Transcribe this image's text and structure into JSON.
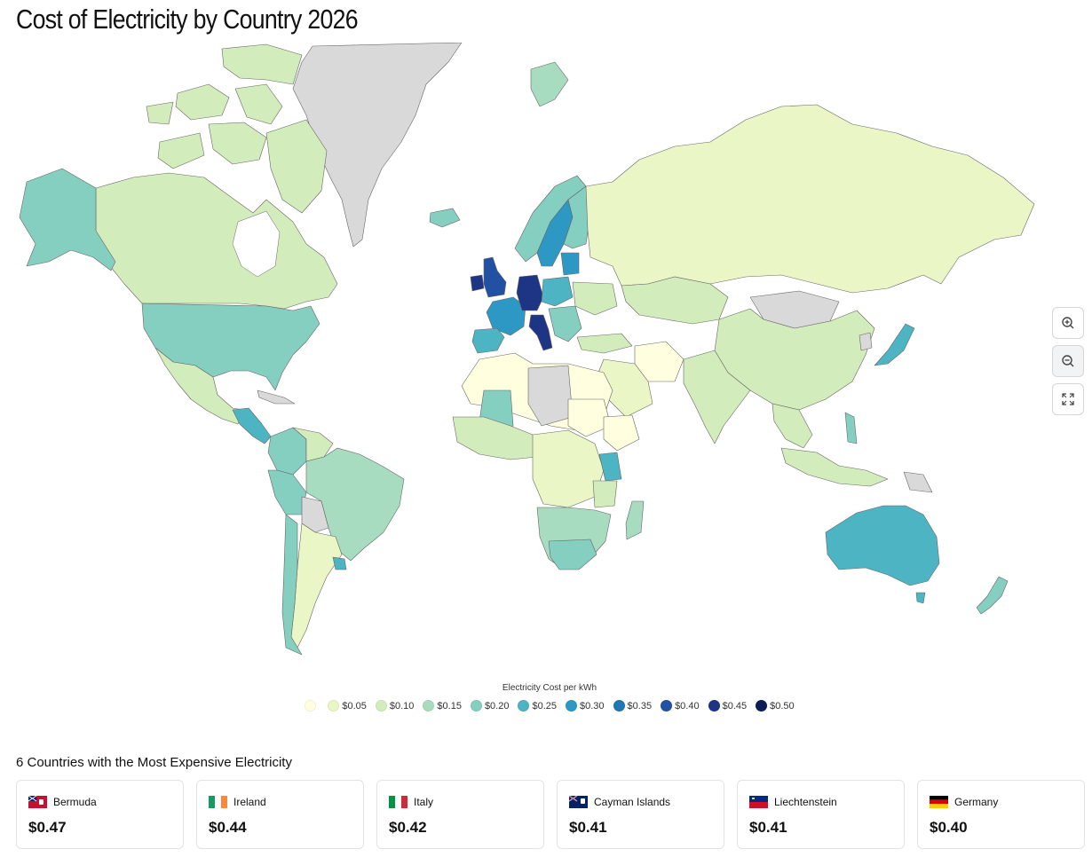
{
  "page": {
    "title": "Cost of Electricity by Country 2026"
  },
  "map": {
    "colors": {
      "0.00": "#ffffe0",
      "0.05": "#eaf6c6",
      "0.10": "#d3ecbb",
      "0.15": "#a8dcc0",
      "0.20": "#84cfc0",
      "0.25": "#4db4c4",
      "0.30": "#2e98c4",
      "0.35": "#2077b4",
      "0.40": "#2251a3",
      "0.45": "#1e3485",
      "0.50": "#0d1d58",
      "nodata": "#d9d9d9",
      "border": "#666666"
    },
    "controls": {
      "zoom_in_icon": "zoom-in-icon",
      "zoom_out_icon": "zoom-out-icon",
      "fullscreen_icon": "fullscreen-icon"
    }
  },
  "legend": {
    "title": "Electricity Cost per kWh",
    "items": [
      {
        "label": "",
        "color": "#ffffe0"
      },
      {
        "label": "$0.05",
        "color": "#eaf6c6"
      },
      {
        "label": "$0.10",
        "color": "#d3ecbb"
      },
      {
        "label": "$0.15",
        "color": "#a8dcc0"
      },
      {
        "label": "$0.20",
        "color": "#84cfc0"
      },
      {
        "label": "$0.25",
        "color": "#4db4c4"
      },
      {
        "label": "$0.30",
        "color": "#2e98c4"
      },
      {
        "label": "$0.35",
        "color": "#2077b4"
      },
      {
        "label": "$0.40",
        "color": "#2251a3"
      },
      {
        "label": "$0.45",
        "color": "#1e3485"
      },
      {
        "label": "$0.50",
        "color": "#0d1d58"
      }
    ]
  },
  "top": {
    "title": "6 Countries with the Most Expensive Electricity",
    "cards": [
      {
        "country": "Bermuda",
        "price": "$0.47",
        "flag": "bermuda-flag-icon"
      },
      {
        "country": "Ireland",
        "price": "$0.44",
        "flag": "ireland-flag-icon"
      },
      {
        "country": "Italy",
        "price": "$0.42",
        "flag": "italy-flag-icon"
      },
      {
        "country": "Cayman Islands",
        "price": "$0.41",
        "flag": "cayman-islands-flag-icon"
      },
      {
        "country": "Liechtenstein",
        "price": "$0.41",
        "flag": "liechtenstein-flag-icon"
      },
      {
        "country": "Germany",
        "price": "$0.40",
        "flag": "germany-flag-icon"
      }
    ]
  }
}
